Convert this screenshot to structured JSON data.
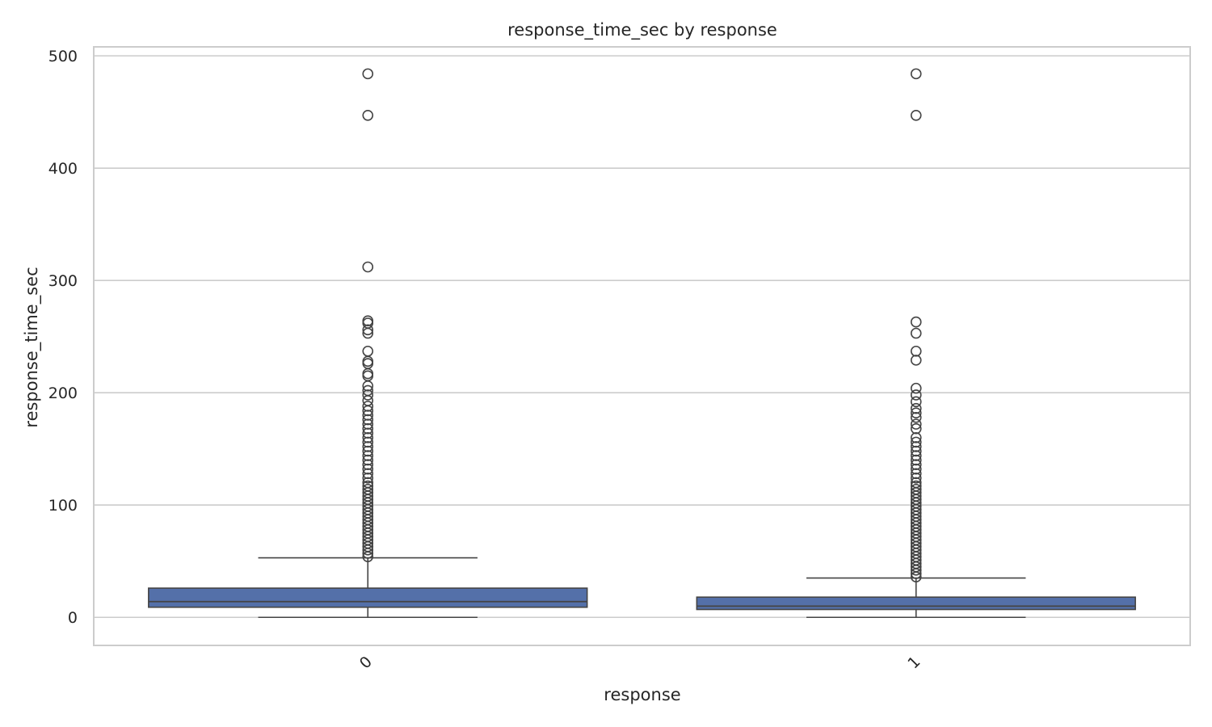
{
  "chart_data": {
    "type": "box",
    "title": "response_time_sec by response",
    "xlabel": "response",
    "ylabel": "response_time_sec",
    "categories": [
      "0",
      "1"
    ],
    "ylim": [
      -25,
      508
    ],
    "yticks": [
      0,
      100,
      200,
      300,
      400,
      500
    ],
    "grid": "horizontal",
    "box_color": "#5470a9",
    "edge_color": "#444444",
    "grid_color": "#cccccc",
    "boxes": [
      {
        "category": "0",
        "whisker_low": 0,
        "q1": 9,
        "median": 14,
        "q3": 26,
        "whisker_high": 53,
        "outliers": [
          484,
          447,
          312,
          264,
          262,
          256,
          253,
          237,
          228,
          226,
          217,
          215,
          206,
          202,
          198,
          193,
          188,
          184,
          180,
          176,
          172,
          168,
          164,
          160,
          156,
          152,
          148,
          144,
          140,
          136,
          132,
          128,
          124,
          120,
          117,
          114,
          111,
          108,
          105,
          102,
          99,
          96,
          93,
          90,
          87,
          84,
          81,
          78,
          75,
          72,
          69,
          66,
          63,
          60,
          57,
          54
        ]
      },
      {
        "category": "1",
        "whisker_low": 0,
        "q1": 7,
        "median": 10,
        "q3": 18,
        "whisker_high": 35,
        "outliers": [
          484,
          447,
          263,
          253,
          237,
          229,
          204,
          198,
          192,
          186,
          182,
          178,
          172,
          168,
          160,
          156,
          152,
          148,
          144,
          140,
          136,
          132,
          128,
          124,
          120,
          117,
          114,
          111,
          108,
          105,
          102,
          99,
          96,
          93,
          90,
          87,
          84,
          81,
          78,
          75,
          72,
          69,
          66,
          63,
          60,
          57,
          54,
          51,
          48,
          45,
          42,
          39,
          36
        ]
      }
    ]
  }
}
